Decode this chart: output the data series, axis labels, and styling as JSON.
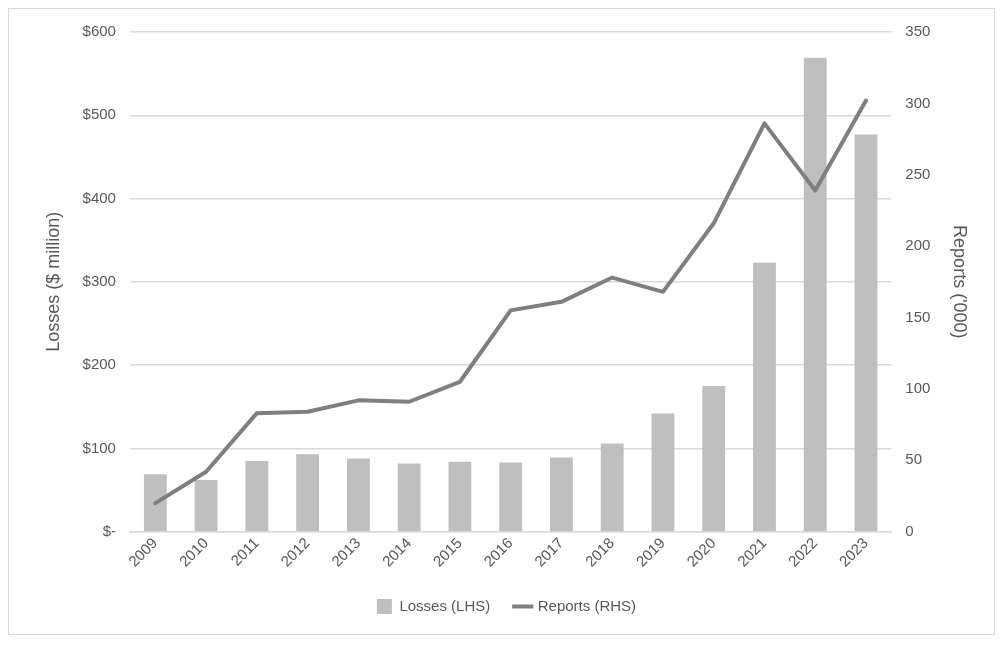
{
  "chart_data": {
    "type": "bar",
    "categories": [
      "2009",
      "2010",
      "2011",
      "2012",
      "2013",
      "2014",
      "2015",
      "2016",
      "2017",
      "2018",
      "2019",
      "2020",
      "2021",
      "2022",
      "2023"
    ],
    "series": [
      {
        "name": "Losses (LHS)",
        "color": "#bfbfbf",
        "values": [
          69,
          62,
          85,
          93,
          88,
          82,
          84,
          83,
          89,
          106,
          142,
          175,
          323,
          569,
          477
        ]
      },
      {
        "name": "Reports (RHS)",
        "type": "line",
        "axis": "y2",
        "color": "#7f7f7f",
        "values": [
          20,
          42,
          83,
          84,
          92,
          91,
          105,
          155,
          161,
          178,
          168,
          216,
          286,
          239,
          302
        ]
      }
    ],
    "ylabel": "Losses ($ million)",
    "y2label": "Reports ('000)",
    "ylim": [
      0,
      600
    ],
    "yticks": [
      {
        "value": 0,
        "label": "$-"
      },
      {
        "value": 100,
        "label": "$100"
      },
      {
        "value": 200,
        "label": "$200"
      },
      {
        "value": 300,
        "label": "$300"
      },
      {
        "value": 400,
        "label": "$400"
      },
      {
        "value": 500,
        "label": "$500"
      },
      {
        "value": 600,
        "label": "$600"
      }
    ],
    "y2lim": [
      0,
      350
    ],
    "y2ticks": [
      0,
      50,
      100,
      150,
      200,
      250,
      300,
      350
    ],
    "grid": "y",
    "legend": "bottom",
    "marker": "none"
  }
}
